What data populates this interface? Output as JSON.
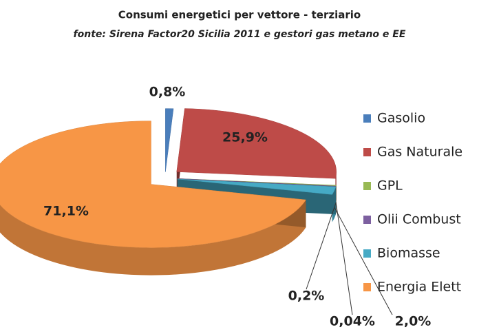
{
  "chart_data": {
    "type": "pie3d",
    "title": "Consumi energetici per vettore - terziario",
    "subtitle": "fonte: Sirena Factor20 Sicilia 2011 e gestori gas metano e EE",
    "categories": [
      "Gasolio",
      "Gas Naturale",
      "GPL",
      "Olii Combust",
      "Biomasse",
      "Energia Elett"
    ],
    "values": [
      0.8,
      25.9,
      0.2,
      0.04,
      2.0,
      71.1
    ],
    "value_labels": [
      "0,8%",
      "25,9%",
      "0,2%",
      "0,04%",
      "2,0%",
      "71,1%"
    ],
    "colors": [
      "#4a7ebb",
      "#be4b48",
      "#98b954",
      "#7d60a0",
      "#46aac5",
      "#f79646"
    ]
  }
}
